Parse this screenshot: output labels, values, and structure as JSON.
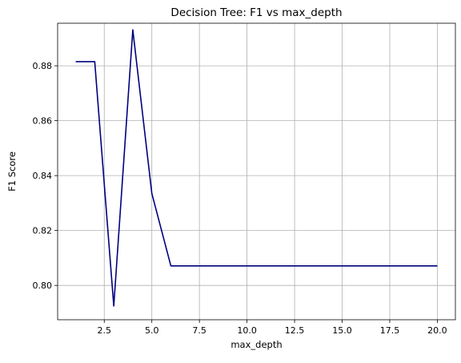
{
  "chart_data": {
    "type": "line",
    "title": "Decision Tree: F1 vs max_depth",
    "xlabel": "max_depth",
    "ylabel": "F1 Score",
    "xlim": [
      0.05,
      20.95
    ],
    "ylim": [
      0.7875,
      0.8955
    ],
    "xticks": [
      2.5,
      5.0,
      7.5,
      10.0,
      12.5,
      15.0,
      17.5,
      20.0
    ],
    "xtick_labels": [
      "2.5",
      "5.0",
      "7.5",
      "10.0",
      "12.5",
      "15.0",
      "17.5",
      "20.0"
    ],
    "yticks": [
      0.8,
      0.82,
      0.84,
      0.86,
      0.88
    ],
    "ytick_labels": [
      "0.80",
      "0.82",
      "0.84",
      "0.86",
      "0.88"
    ],
    "grid": true,
    "legend": false,
    "series": [
      {
        "color": "#000080",
        "x": [
          1,
          2,
          3,
          4,
          5,
          6,
          7,
          8,
          9,
          10,
          11,
          12,
          13,
          14,
          15,
          16,
          17,
          18,
          19,
          20
        ],
        "y": [
          0.8815,
          0.8815,
          0.7925,
          0.8931,
          0.8335,
          0.8071,
          0.8071,
          0.8071,
          0.8071,
          0.8071,
          0.8071,
          0.8071,
          0.8071,
          0.8071,
          0.8071,
          0.8071,
          0.8071,
          0.8071,
          0.8071,
          0.8071
        ]
      }
    ]
  }
}
